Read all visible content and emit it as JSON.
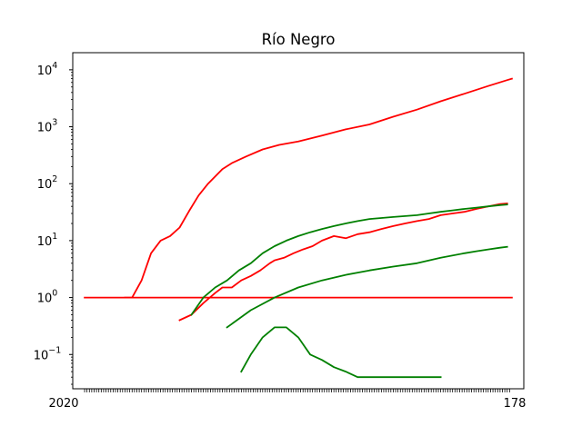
{
  "chart_data": {
    "type": "line",
    "title": "Río Negro",
    "xlabel": "",
    "ylabel": "",
    "yscale": "log",
    "ylim": [
      0.025,
      20000
    ],
    "xlim": [
      -5,
      185
    ],
    "yticks": [
      {
        "value": 0.1,
        "base": "10",
        "exp": "−1"
      },
      {
        "value": 1,
        "base": "10",
        "exp": "0"
      },
      {
        "value": 10,
        "base": "10",
        "exp": "1"
      },
      {
        "value": 100,
        "base": "10",
        "exp": "2"
      },
      {
        "value": 1000,
        "base": "10",
        "exp": "3"
      },
      {
        "value": 10000,
        "base": "10",
        "exp": "4"
      }
    ],
    "x_tick_count": 180,
    "x_label_first": "2020",
    "x_label_last": "178",
    "grid": false,
    "colors": {
      "cases": "#ff0000",
      "deaths": "#008000"
    },
    "series": [
      {
        "color": "#ff0000",
        "x": [
          0,
          4,
          8,
          10,
          12,
          14,
          16,
          18,
          20,
          22,
          24,
          28,
          32,
          36,
          40,
          44,
          48,
          52,
          56,
          60,
          65,
          70,
          75,
          80,
          90,
          100,
          110,
          120,
          130,
          140,
          150,
          160,
          170,
          180
        ],
        "y": [
          1,
          1,
          1,
          1,
          1,
          1,
          1,
          1,
          1,
          1,
          1,
          1,
          1,
          1,
          1,
          1,
          1,
          1,
          1,
          1,
          1,
          1,
          1,
          1,
          1,
          1,
          1,
          1,
          1,
          1,
          1,
          1,
          1,
          1
        ]
      },
      {
        "color": "#ff0000",
        "x": [
          17,
          20,
          24,
          28,
          32,
          36,
          40,
          44,
          48,
          52,
          58,
          62,
          68,
          75,
          82,
          90,
          100,
          110,
          120,
          130,
          140,
          150,
          160,
          170,
          178,
          180
        ],
        "y": [
          1,
          1,
          2,
          6,
          10,
          12,
          17,
          33,
          62,
          100,
          180,
          230,
          300,
          400,
          480,
          550,
          700,
          900,
          1100,
          1500,
          2000,
          2800,
          3800,
          5200,
          6600,
          7000
        ]
      },
      {
        "color": "#ff0000",
        "x": [
          40,
          45,
          50,
          55,
          58,
          62,
          66,
          70,
          74,
          78,
          80,
          84,
          88,
          92,
          96,
          100,
          105,
          110,
          115,
          120,
          125,
          130,
          135,
          140,
          145,
          150,
          155,
          160,
          165,
          170,
          175,
          178
        ],
        "y": [
          0.4,
          0.5,
          0.8,
          1.2,
          1.5,
          1.5,
          2,
          2.4,
          3,
          4,
          4.5,
          5,
          6,
          7,
          8,
          10,
          12,
          11,
          13,
          14,
          16,
          18,
          20,
          22,
          24,
          28,
          30,
          32,
          36,
          40,
          44,
          45
        ]
      },
      {
        "color": "#008000",
        "x": [
          45,
          50,
          55,
          60,
          65,
          70,
          75,
          80,
          85,
          90,
          95,
          100,
          105,
          110,
          115,
          120,
          125,
          130,
          135,
          140,
          145,
          150,
          155,
          160,
          165,
          170,
          175,
          178
        ],
        "y": [
          0.5,
          1,
          1.5,
          2,
          3,
          4,
          6,
          8,
          10,
          12,
          14,
          16,
          18,
          20,
          22,
          24,
          25,
          26,
          27,
          28,
          30,
          32,
          34,
          36,
          38,
          40,
          42,
          43
        ]
      },
      {
        "color": "#008000",
        "x": [
          60,
          70,
          80,
          90,
          100,
          110,
          120,
          130,
          140,
          150,
          160,
          165,
          170,
          175,
          178
        ],
        "y": [
          0.3,
          0.6,
          1,
          1.5,
          2,
          2.5,
          3,
          3.5,
          4,
          5,
          6,
          6.5,
          7,
          7.5,
          7.8
        ]
      },
      {
        "color": "#008000",
        "x": [
          66,
          70,
          75,
          80,
          85,
          90,
          95,
          100,
          105,
          110,
          115,
          120,
          125,
          130,
          135,
          140,
          145,
          150
        ],
        "y": [
          0.05,
          0.1,
          0.2,
          0.3,
          0.3,
          0.2,
          0.1,
          0.08,
          0.06,
          0.05,
          0.04,
          0.04,
          0.04,
          0.04,
          0.04,
          0.04,
          0.04,
          0.04
        ]
      }
    ]
  }
}
